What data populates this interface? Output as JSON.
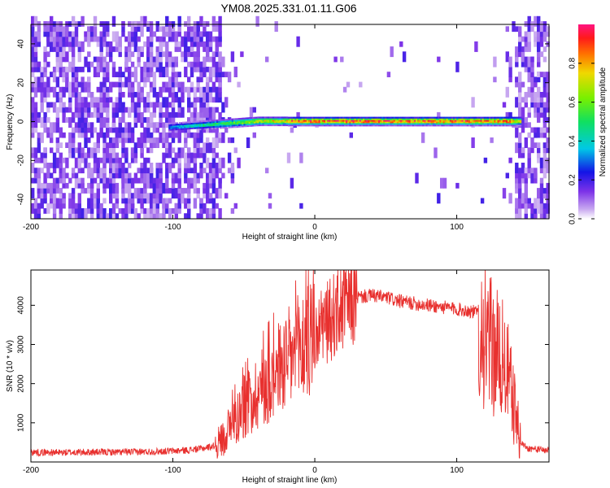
{
  "title": "YM08.2025.331.01.11.G06",
  "chart_data": [
    {
      "type": "heatmap",
      "xlabel": "Height of straight line (km)",
      "ylabel": "Frequency (Hz)",
      "colorbar_label": "Normalized spectral amplitude",
      "xlim": [
        -200,
        165
      ],
      "ylim": [
        -50,
        50
      ],
      "xticks": [
        -200,
        -100,
        0,
        100
      ],
      "yticks": [
        -40,
        -20,
        0,
        20,
        40
      ],
      "colorbar_range": [
        0,
        1
      ],
      "colorbar_ticks": [
        "0.0",
        "0.2",
        "0.4",
        "0.6",
        "0.8"
      ],
      "grid": false,
      "noise_regions_km": [
        [
          -200,
          -68
        ],
        [
          140,
          165
        ]
      ],
      "signal_band": {
        "x_range_km": [
          -103,
          145
        ],
        "center_frequency_hz": [
          {
            "x": -100,
            "y": -3
          },
          {
            "x": -80,
            "y": -2
          },
          {
            "x": -60,
            "y": -1
          },
          {
            "x": -40,
            "y": 0
          },
          {
            "x": -20,
            "y": 0
          },
          {
            "x": 0,
            "y": 0
          },
          {
            "x": 50,
            "y": 0
          },
          {
            "x": 100,
            "y": 0
          },
          {
            "x": 140,
            "y": 0
          }
        ],
        "peak_amplitude_range_km": [
          -20,
          140
        ],
        "peak_amplitude": 0.95
      }
    },
    {
      "type": "line",
      "xlabel": "Height of straight line (km)",
      "ylabel": "SNR (10 * v/v)",
      "xlim": [
        -200,
        165
      ],
      "ylim": [
        0,
        4900
      ],
      "xticks": [
        -200,
        -100,
        0,
        100
      ],
      "yticks": [
        1000,
        2000,
        3000,
        4000
      ],
      "grid": false,
      "color": "#e8302e",
      "series": [
        {
          "x": [
            -200,
            -180,
            -160,
            -140,
            -120,
            -100,
            -90,
            -80,
            -70,
            -65,
            -60,
            -55,
            -50,
            -45,
            -40,
            -35,
            -30,
            -25,
            -20,
            -15,
            -10,
            -5,
            0,
            5,
            10,
            15,
            20,
            25,
            30,
            40,
            50,
            60,
            70,
            80,
            90,
            100,
            110,
            115,
            118,
            122,
            126,
            130,
            135,
            140,
            145,
            150,
            155,
            160,
            165
          ],
          "y": [
            250,
            240,
            250,
            250,
            260,
            280,
            300,
            340,
            420,
            600,
            900,
            1150,
            1400,
            1600,
            1800,
            2000,
            2200,
            2400,
            2550,
            2700,
            2900,
            3050,
            3200,
            3400,
            3600,
            3800,
            3950,
            4100,
            4200,
            4250,
            4200,
            4100,
            4050,
            4000,
            3950,
            3900,
            3850,
            3800,
            3300,
            3000,
            2900,
            2700,
            2400,
            1500,
            500,
            350,
            330,
            310,
            300
          ]
        }
      ]
    }
  ]
}
